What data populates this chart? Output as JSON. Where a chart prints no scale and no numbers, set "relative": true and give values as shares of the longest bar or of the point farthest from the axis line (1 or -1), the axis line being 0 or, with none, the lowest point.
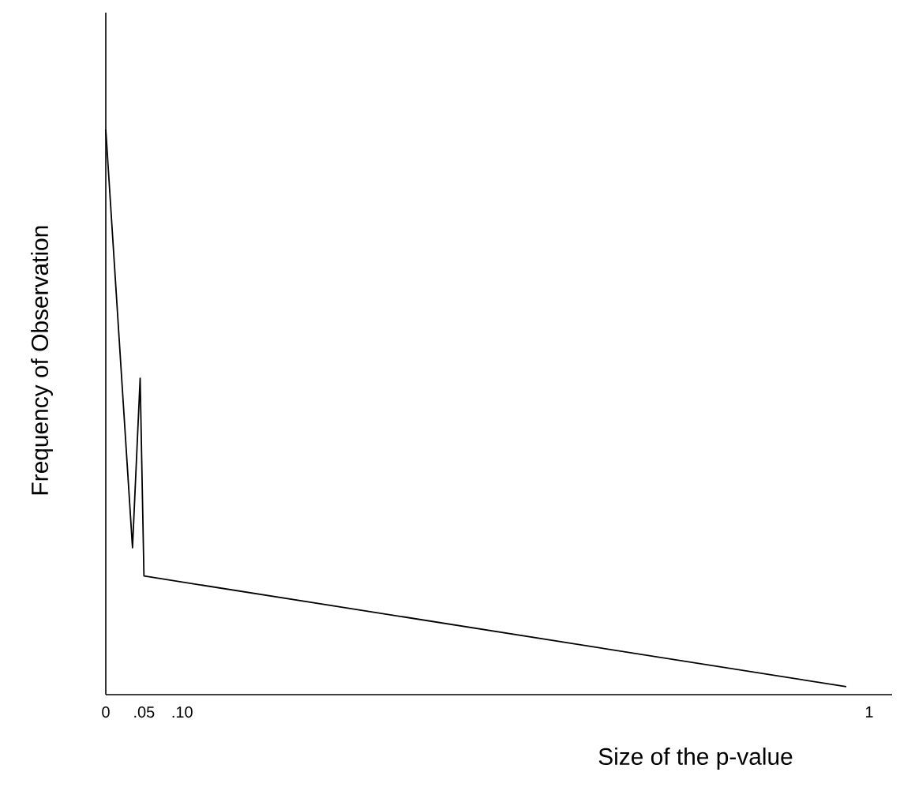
{
  "chart_data": {
    "type": "line",
    "relative": true,
    "xlabel": "Size of the p-value",
    "ylabel": "Frequency of Observation",
    "x": [
      0,
      0.035,
      0.045,
      0.05,
      0.97
    ],
    "series": [
      {
        "color": "#000000",
        "values": [
          1,
          0.26,
          0.56,
          0.21,
          0.014
        ]
      }
    ],
    "xlim": [
      0,
      1.03
    ],
    "xticks": [
      0,
      {
        "value": 0.05,
        "label": ".05"
      },
      {
        "value": 0.1,
        "label": ".10"
      },
      1
    ],
    "grid": false,
    "marker": "none",
    "line_style": "solid"
  }
}
